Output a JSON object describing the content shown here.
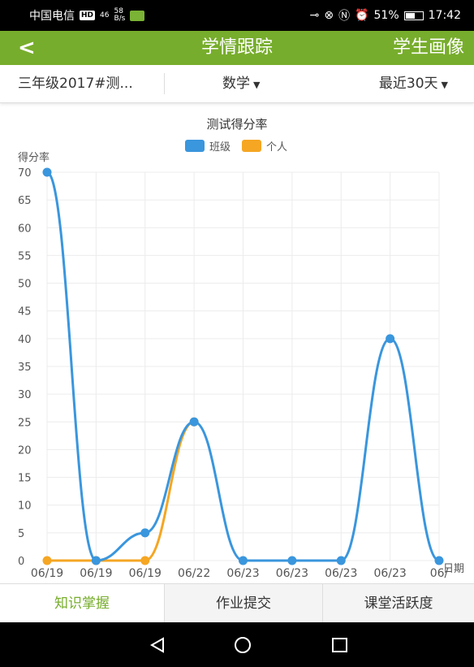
{
  "status_bar": {
    "carrier": "中国电信",
    "hd_badge": "HD",
    "signal": "46",
    "net_speed_value": "58",
    "net_speed_unit": "B/s",
    "battery": "51%",
    "time": "17:42"
  },
  "header": {
    "back": "<",
    "title": "学情跟踪",
    "right_link": "学生画像",
    "bg_color": "#77ad2c"
  },
  "filters": {
    "class": "三年级2017#测...",
    "subject": "数学",
    "period": "最近30天"
  },
  "tabs": [
    {
      "label": "知识掌握",
      "active": true
    },
    {
      "label": "作业提交",
      "active": false
    },
    {
      "label": "课堂活跃度",
      "active": false
    }
  ],
  "chart_data": {
    "type": "line",
    "title": "测试得分率",
    "ylabel": "得分率",
    "xlabel": "日期",
    "ylim": [
      0,
      70
    ],
    "yticks": [
      0,
      5,
      10,
      15,
      20,
      25,
      30,
      35,
      40,
      45,
      50,
      55,
      60,
      65,
      70
    ],
    "categories": [
      "06/19",
      "06/19",
      "06/19",
      "06/22",
      "06/23",
      "06/23",
      "06/23",
      "06/23",
      "06/"
    ],
    "grid": true,
    "legend_position": "top-center",
    "series": [
      {
        "name": "班级",
        "color": "#3a96dd",
        "values": [
          70,
          0,
          5,
          25,
          0,
          0,
          0,
          40,
          0
        ]
      },
      {
        "name": "个人",
        "color": "#f5a623",
        "values": [
          0,
          0,
          0,
          25,
          null,
          null,
          null,
          null,
          null
        ]
      }
    ]
  }
}
